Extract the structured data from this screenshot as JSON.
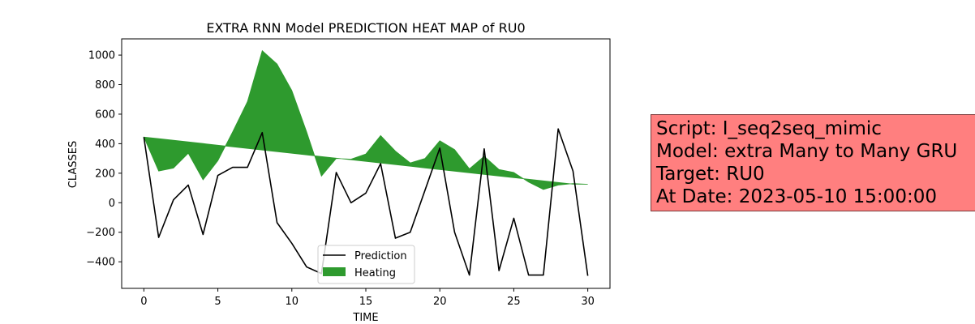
{
  "chart_data": {
    "type": "line",
    "title": "EXTRA RNN Model PREDICTION HEAT MAP of RU0",
    "xlabel": "TIME",
    "ylabel": "CLASSES",
    "xlim": [
      -1.5,
      31.5
    ],
    "ylim": [
      -580,
      1110
    ],
    "xticks": [
      0,
      5,
      10,
      15,
      20,
      25,
      30
    ],
    "yticks": [
      -400,
      -200,
      0,
      200,
      400,
      600,
      800,
      1000
    ],
    "grid": false,
    "legend_position": "lower-center",
    "x": [
      0,
      1,
      2,
      3,
      4,
      5,
      6,
      7,
      8,
      9,
      10,
      11,
      12,
      13,
      14,
      15,
      16,
      17,
      18,
      19,
      20,
      21,
      22,
      23,
      24,
      25,
      26,
      27,
      28,
      29,
      30
    ],
    "series": [
      {
        "name": "Prediction",
        "kind": "line",
        "color": "#000000",
        "values": [
          445,
          -235,
          20,
          120,
          -215,
          185,
          240,
          240,
          475,
          -135,
          -275,
          -435,
          -480,
          205,
          0,
          65,
          265,
          -240,
          -200,
          85,
          370,
          -200,
          -490,
          365,
          -460,
          -105,
          -490,
          -490,
          500,
          215,
          -495
        ]
      },
      {
        "name": "Heating",
        "kind": "fill_between",
        "color": "#2e9a2e",
        "trend": [
          445,
          434,
          423,
          412,
          401,
          390,
          379,
          368,
          357,
          346,
          335,
          324,
          313,
          302,
          291,
          280,
          269,
          258,
          247,
          236,
          225,
          214,
          203,
          192,
          181,
          170,
          159,
          148,
          137,
          126,
          125
        ],
        "values": [
          445,
          215,
          235,
          335,
          155,
          285,
          480,
          685,
          1030,
          940,
          760,
          480,
          180,
          300,
          295,
          330,
          455,
          350,
          270,
          300,
          420,
          360,
          230,
          315,
          225,
          205,
          140,
          90,
          120,
          130,
          125
        ]
      }
    ]
  },
  "info_box": {
    "lines": [
      "Script: I_seq2seq_mimic",
      "Model: extra Many to Many GRU",
      "Target: RU0",
      "At Date: 2023-05-10 15:00:00"
    ]
  }
}
